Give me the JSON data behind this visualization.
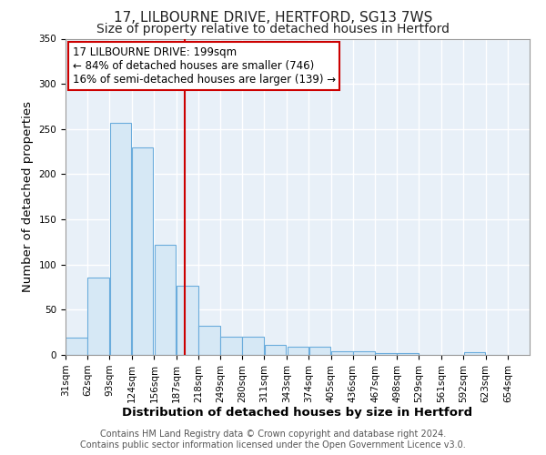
{
  "title": "17, LILBOURNE DRIVE, HERTFORD, SG13 7WS",
  "subtitle": "Size of property relative to detached houses in Hertford",
  "xlabel": "Distribution of detached houses by size in Hertford",
  "ylabel": "Number of detached properties",
  "bar_left_edges": [
    31,
    62,
    93,
    124,
    156,
    187,
    218,
    249,
    280,
    311,
    343,
    374,
    405,
    436,
    467,
    498,
    529,
    561,
    592,
    623
  ],
  "bar_heights": [
    19,
    86,
    257,
    230,
    122,
    77,
    32,
    20,
    20,
    11,
    9,
    9,
    4,
    4,
    2,
    2,
    0,
    0,
    3,
    0
  ],
  "bin_width": 31,
  "bar_facecolor": "#d6e8f5",
  "bar_edgecolor": "#6aacdc",
  "reference_line_x": 199,
  "reference_line_color": "#cc0000",
  "annotation_line1": "17 LILBOURNE DRIVE: 199sqm",
  "annotation_line2": "← 84% of detached houses are smaller (746)",
  "annotation_line3": "16% of semi-detached houses are larger (139) →",
  "annotation_box_edgecolor": "#cc0000",
  "ylim": [
    0,
    350
  ],
  "yticks": [
    0,
    50,
    100,
    150,
    200,
    250,
    300,
    350
  ],
  "xtick_labels": [
    "31sqm",
    "62sqm",
    "93sqm",
    "124sqm",
    "156sqm",
    "187sqm",
    "218sqm",
    "249sqm",
    "280sqm",
    "311sqm",
    "343sqm",
    "374sqm",
    "405sqm",
    "436sqm",
    "467sqm",
    "498sqm",
    "529sqm",
    "561sqm",
    "592sqm",
    "623sqm",
    "654sqm"
  ],
  "xtick_positions": [
    31,
    62,
    93,
    124,
    156,
    187,
    218,
    249,
    280,
    311,
    343,
    374,
    405,
    436,
    467,
    498,
    529,
    561,
    592,
    623,
    654
  ],
  "footer_line1": "Contains HM Land Registry data © Crown copyright and database right 2024.",
  "footer_line2": "Contains public sector information licensed under the Open Government Licence v3.0.",
  "bg_color": "#ffffff",
  "plot_bg_color": "#e8f0f8",
  "grid_color": "#ffffff",
  "title_fontsize": 11,
  "subtitle_fontsize": 10,
  "axis_label_fontsize": 9.5,
  "tick_fontsize": 7.5,
  "footer_fontsize": 7,
  "annotation_fontsize": 8.5
}
